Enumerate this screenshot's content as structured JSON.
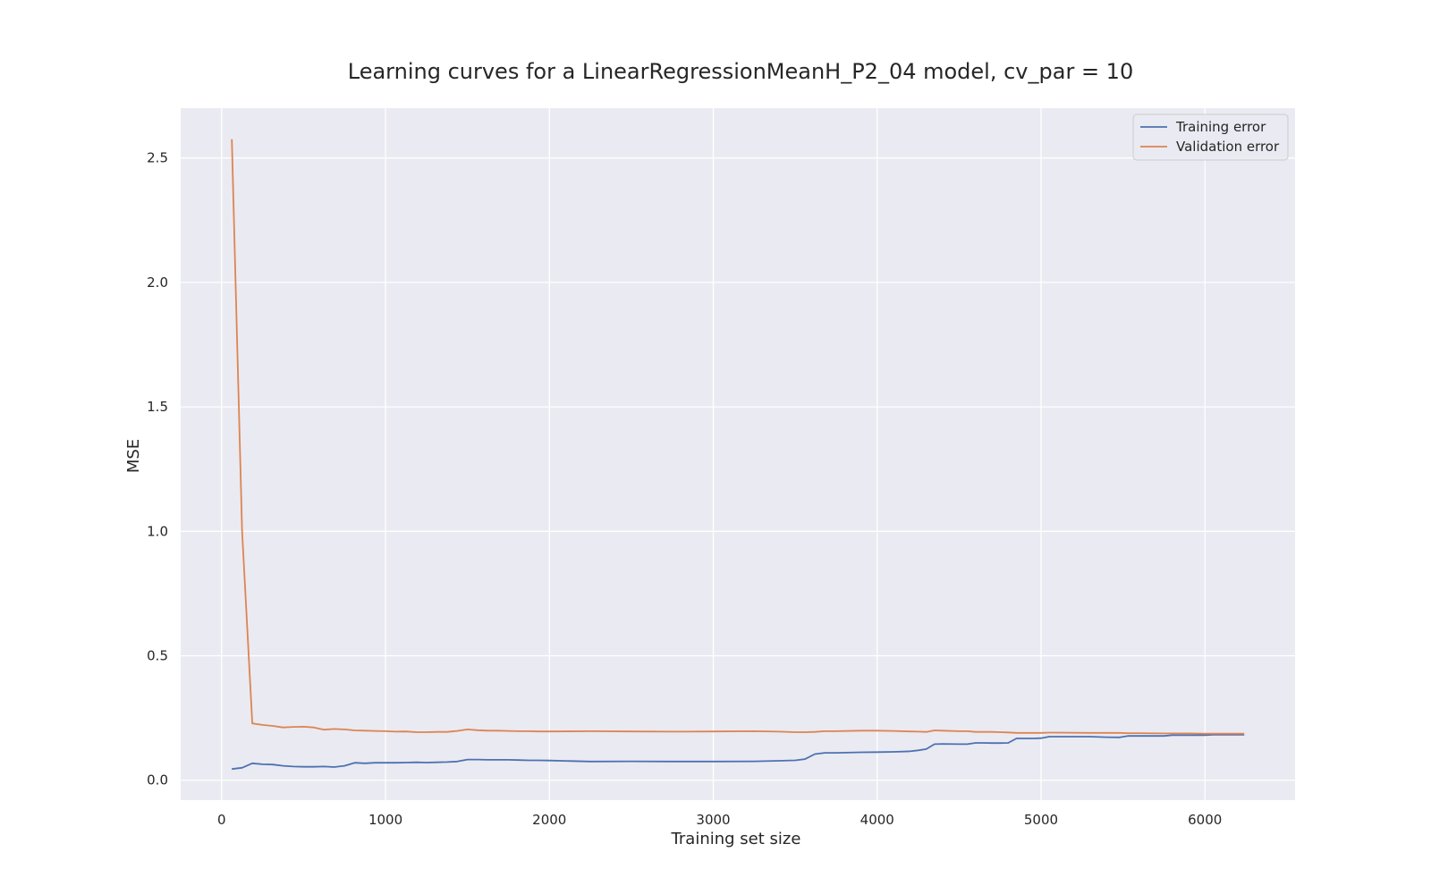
{
  "chart_data": {
    "type": "line",
    "title": "Learning curves for a LinearRegressionMeanH_P2_04 model, cv_par = 10",
    "xlabel": "Training set size",
    "ylabel": "MSE",
    "xlim": [
      -250,
      6550
    ],
    "ylim": [
      -0.08,
      2.7
    ],
    "xticks": [
      0,
      1000,
      2000,
      3000,
      4000,
      5000,
      6000
    ],
    "xtick_labels": [
      "0",
      "1000",
      "2000",
      "3000",
      "4000",
      "5000",
      "6000"
    ],
    "yticks": [
      0.0,
      0.5,
      1.0,
      1.5,
      2.0,
      2.5
    ],
    "ytick_labels": [
      "0.0",
      "0.5",
      "1.0",
      "1.5",
      "2.0",
      "2.5"
    ],
    "grid": true,
    "legend_position": "top-right",
    "background_color": "#eaeaf2",
    "series": [
      {
        "name": "Training error",
        "color": "#4c72b0",
        "x": [
          62,
          125,
          187,
          250,
          312,
          375,
          437,
          500,
          562,
          625,
          687,
          750,
          812,
          875,
          937,
          1000,
          1062,
          1125,
          1187,
          1250,
          1312,
          1375,
          1437,
          1500,
          1562,
          1625,
          1687,
          1750,
          1812,
          1875,
          1937,
          2000,
          2250,
          2500,
          2750,
          3000,
          3250,
          3400,
          3500,
          3560,
          3620,
          3680,
          3750,
          3900,
          4000,
          4100,
          4200,
          4250,
          4300,
          4350,
          4400,
          4500,
          4550,
          4600,
          4650,
          4700,
          4750,
          4800,
          4850,
          4900,
          4950,
          5000,
          5050,
          5100,
          5300,
          5400,
          5480,
          5530,
          5600,
          5750,
          5800,
          5900,
          6000,
          6050,
          6100,
          6240
        ],
        "values": [
          0.045,
          0.05,
          0.068,
          0.064,
          0.063,
          0.058,
          0.055,
          0.054,
          0.054,
          0.055,
          0.053,
          0.058,
          0.07,
          0.068,
          0.07,
          0.07,
          0.07,
          0.071,
          0.072,
          0.071,
          0.072,
          0.073,
          0.075,
          0.083,
          0.083,
          0.082,
          0.082,
          0.082,
          0.081,
          0.08,
          0.08,
          0.079,
          0.075,
          0.076,
          0.075,
          0.075,
          0.076,
          0.078,
          0.08,
          0.085,
          0.105,
          0.11,
          0.11,
          0.112,
          0.113,
          0.114,
          0.116,
          0.12,
          0.125,
          0.145,
          0.146,
          0.145,
          0.145,
          0.15,
          0.15,
          0.149,
          0.149,
          0.15,
          0.168,
          0.168,
          0.168,
          0.169,
          0.175,
          0.175,
          0.175,
          0.173,
          0.172,
          0.178,
          0.178,
          0.178,
          0.181,
          0.181,
          0.181,
          0.183,
          0.183,
          0.183
        ]
      },
      {
        "name": "Validation error",
        "color": "#dd8452",
        "x": [
          62,
          125,
          187,
          250,
          312,
          375,
          437,
          500,
          562,
          625,
          687,
          750,
          812,
          875,
          937,
          1000,
          1062,
          1125,
          1187,
          1250,
          1312,
          1375,
          1437,
          1500,
          1562,
          1625,
          1687,
          1750,
          1812,
          1875,
          1937,
          2000,
          2250,
          2500,
          2750,
          3000,
          3250,
          3400,
          3500,
          3560,
          3620,
          3680,
          3750,
          3900,
          4000,
          4100,
          4200,
          4250,
          4300,
          4350,
          4400,
          4500,
          4550,
          4600,
          4650,
          4700,
          4750,
          4800,
          4850,
          4900,
          4950,
          5000,
          5050,
          5100,
          5300,
          5400,
          5480,
          5530,
          5600,
          5750,
          5800,
          5900,
          6000,
          6050,
          6100,
          6240
        ],
        "values": [
          2.575,
          1.0,
          0.228,
          0.222,
          0.218,
          0.212,
          0.214,
          0.215,
          0.212,
          0.203,
          0.206,
          0.204,
          0.2,
          0.199,
          0.198,
          0.197,
          0.195,
          0.196,
          0.193,
          0.193,
          0.194,
          0.194,
          0.198,
          0.204,
          0.201,
          0.199,
          0.199,
          0.198,
          0.197,
          0.197,
          0.196,
          0.196,
          0.197,
          0.196,
          0.195,
          0.196,
          0.197,
          0.195,
          0.193,
          0.193,
          0.194,
          0.197,
          0.197,
          0.199,
          0.199,
          0.198,
          0.196,
          0.195,
          0.194,
          0.2,
          0.199,
          0.197,
          0.197,
          0.194,
          0.194,
          0.194,
          0.193,
          0.192,
          0.19,
          0.19,
          0.19,
          0.19,
          0.191,
          0.191,
          0.19,
          0.19,
          0.19,
          0.189,
          0.189,
          0.188,
          0.188,
          0.188,
          0.187,
          0.187,
          0.187,
          0.187
        ]
      }
    ]
  }
}
